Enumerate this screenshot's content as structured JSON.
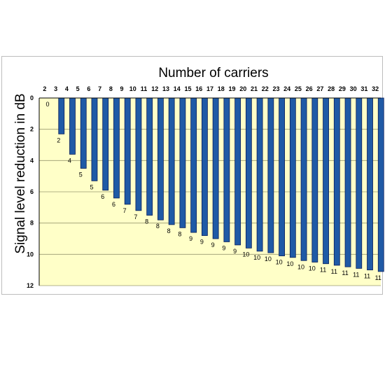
{
  "chart_data": {
    "type": "bar",
    "title": "Number of carriers",
    "xlabel": "Number of carriers",
    "ylabel": "Signal level reduction in dB",
    "ylim": [
      0,
      12
    ],
    "y_inverted": true,
    "x_axis_position": "top",
    "yticks": [
      0,
      2,
      4,
      6,
      8,
      10,
      12
    ],
    "grid": true,
    "legend": "none",
    "categories": [
      "2",
      "3",
      "4",
      "5",
      "6",
      "7",
      "8",
      "9",
      "10",
      "11",
      "12",
      "13",
      "14",
      "15",
      "16",
      "17",
      "18",
      "19",
      "20",
      "21",
      "22",
      "23",
      "24",
      "25",
      "26",
      "27",
      "28",
      "29",
      "30",
      "31",
      "32"
    ],
    "values": [
      0,
      2.3,
      3.6,
      4.5,
      5.3,
      5.9,
      6.4,
      6.8,
      7.2,
      7.5,
      7.8,
      8.1,
      8.3,
      8.6,
      8.8,
      9.0,
      9.2,
      9.4,
      9.6,
      9.8,
      9.9,
      10.1,
      10.2,
      10.4,
      10.5,
      10.6,
      10.7,
      10.8,
      10.9,
      11.0,
      11.1
    ],
    "data_labels": [
      "0",
      "2",
      "4",
      "5",
      "5",
      "6",
      "6",
      "7",
      "7",
      "8",
      "8",
      "8",
      "8",
      "9",
      "9",
      "9",
      "9",
      "9",
      "10",
      "10",
      "10",
      "10",
      "10",
      "10",
      "10",
      "11",
      "11",
      "11",
      "11",
      "11",
      "11"
    ],
    "colors": {
      "bar": "#1f5aa6",
      "bar_edge": "#0b1f5c",
      "plot_background": "#ffffc8",
      "grid": "#9a9a70",
      "axis": "#000000"
    }
  }
}
